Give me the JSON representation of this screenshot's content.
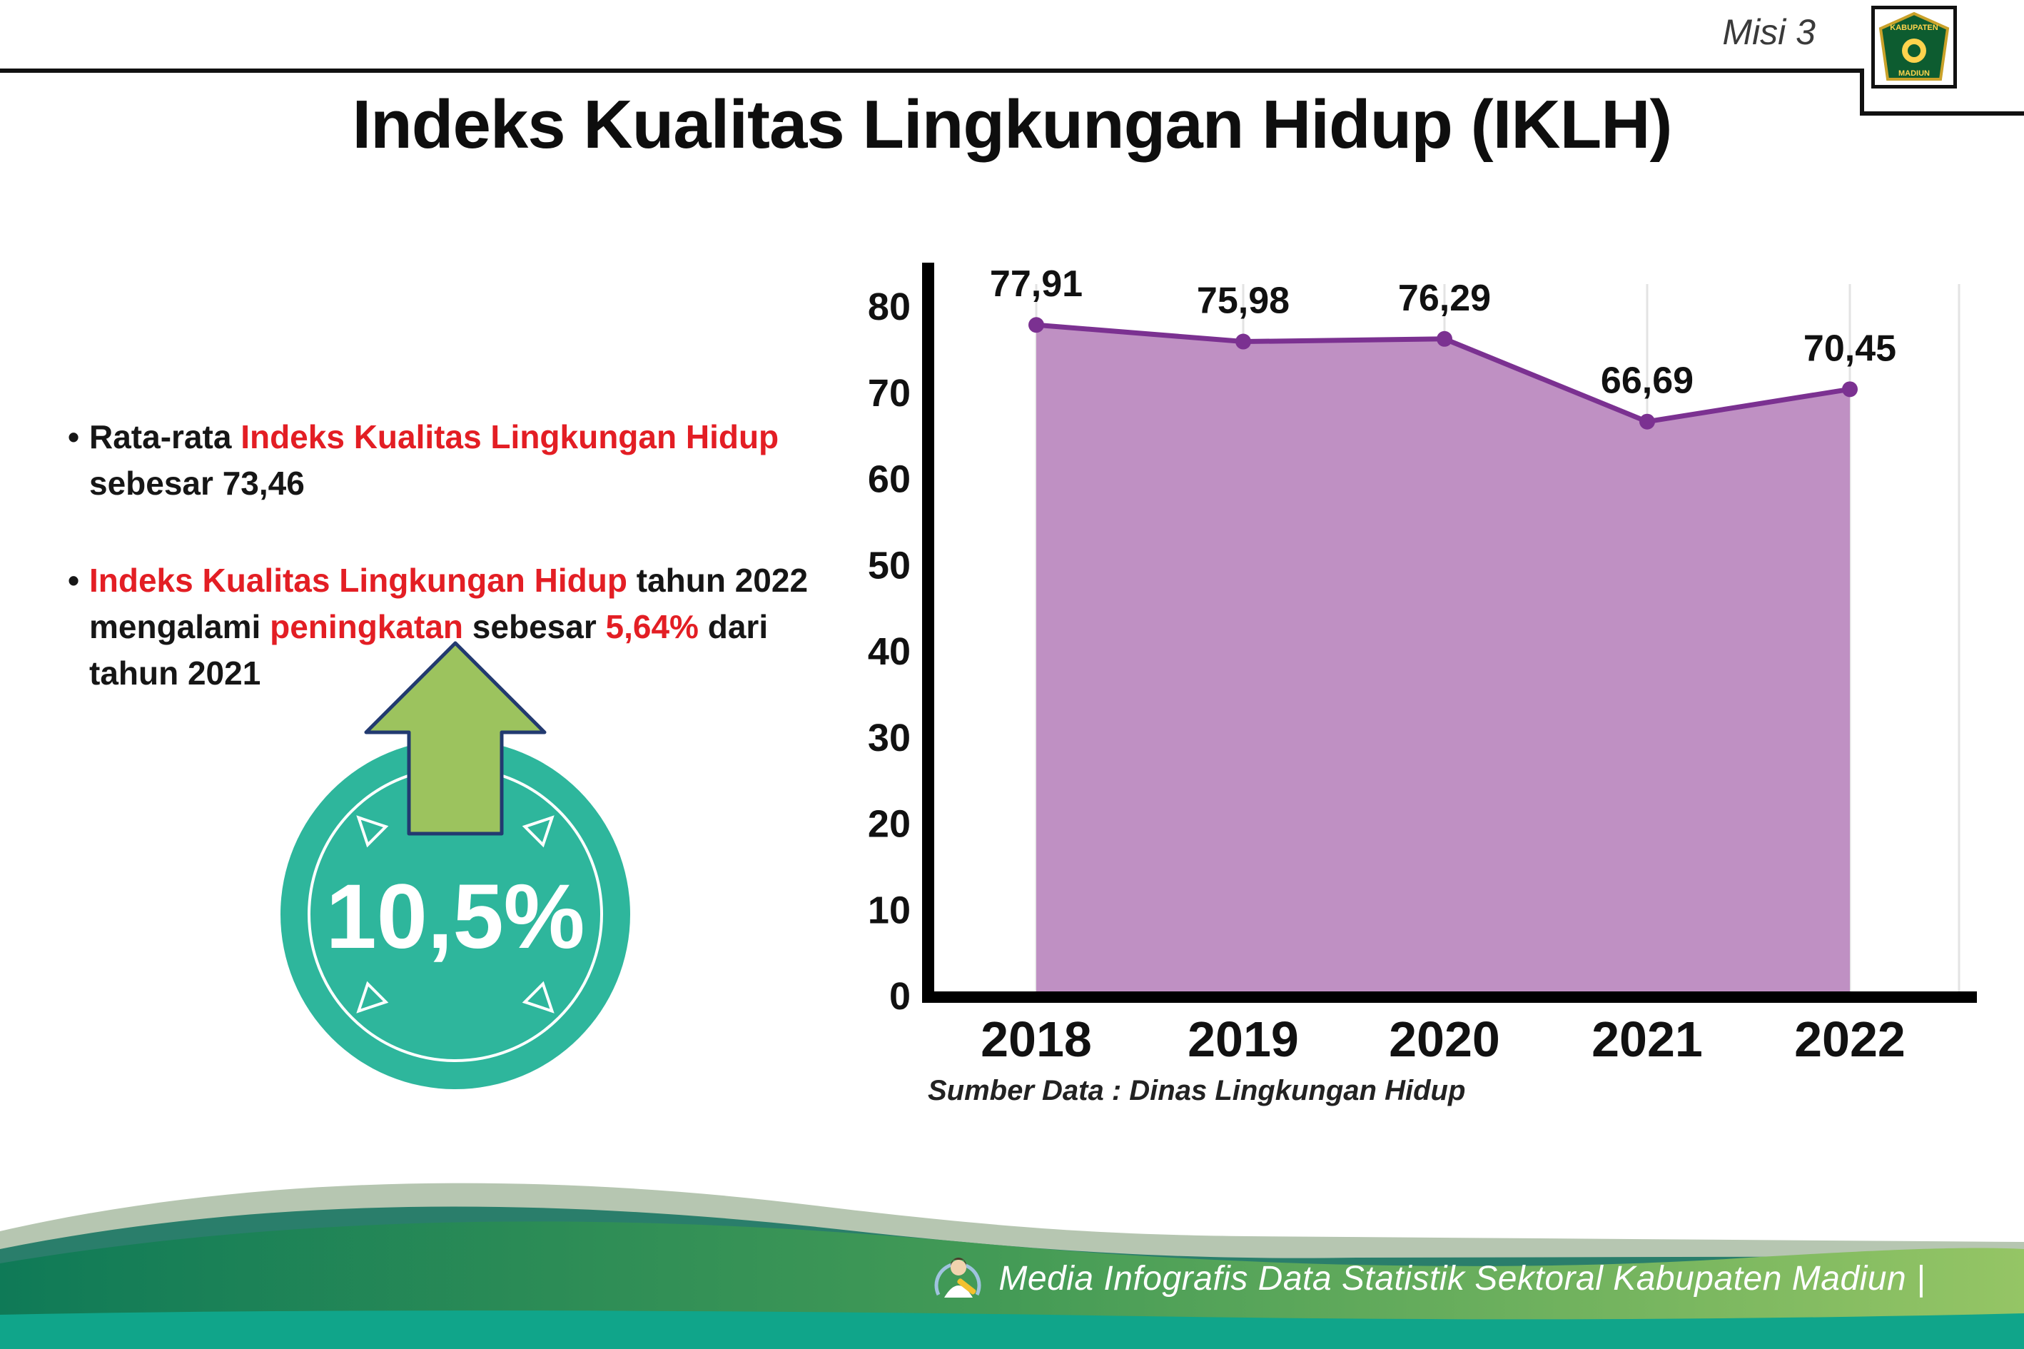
{
  "header": {
    "misi": "Misi 3",
    "title": "Indeks Kualitas Lingkungan Hidup (IKLH)"
  },
  "logo": {
    "line1": "KABUPATEN",
    "line2": "MADIUN"
  },
  "bullets": {
    "dot": "•",
    "b1_pre": "Rata-rata ",
    "b1_red": "Indeks Kualitas Lingkungan Hidup",
    "b1_line2": "sebesar 73,46",
    "b2_red1": "Indeks Kualitas Lingkungan Hidup",
    "b2_t1": " tahun 2022",
    "b2_t2": "mengalami ",
    "b2_red2": "peningkatan",
    "b2_t3": " sebesar ",
    "b2_red3": "5,64%",
    "b2_t4": " dari",
    "b2_line3": "tahun 2021"
  },
  "badge": {
    "value": "10,5%"
  },
  "colors": {
    "accent_red": "#e31e24",
    "badge_teal": "#2eb69c",
    "arrow_green": "#9cc35e",
    "footer_teal": "#10a58a"
  },
  "chart_data": {
    "type": "area",
    "title": "",
    "categories": [
      "2018",
      "2019",
      "2020",
      "2021",
      "2022"
    ],
    "values": [
      77.91,
      75.98,
      76.29,
      66.69,
      70.45
    ],
    "labels": [
      "77,91",
      "75,98",
      "76,29",
      "66,69",
      "70,45"
    ],
    "xlabel": "",
    "ylabel": "",
    "ylim": [
      0,
      80
    ],
    "yticks": [
      0,
      10,
      20,
      30,
      40,
      50,
      60,
      70,
      80
    ],
    "grid": "vertical-light",
    "legend": "none",
    "area_color": "#bf90c3",
    "line_color": "#7b3191",
    "source": "Sumber Data : Dinas Lingkungan Hidup"
  },
  "footer": {
    "credit": "Media Infografis Data Statistik Sektoral Kabupaten Madiun |"
  }
}
